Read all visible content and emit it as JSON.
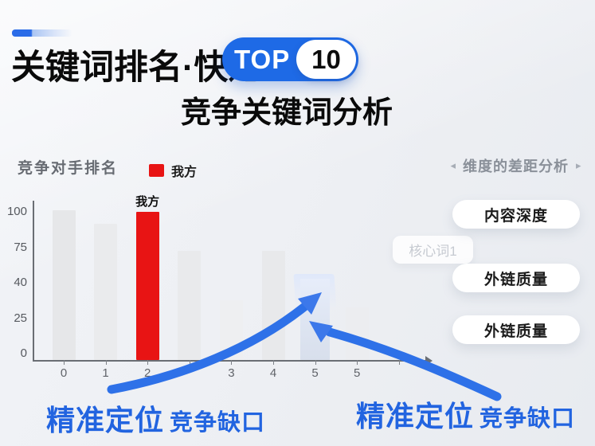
{
  "header": {
    "title_line1": "关键词排名·快速",
    "badge": {
      "label": "TOP",
      "number": "10",
      "bg_color": "#1e6ae6"
    },
    "title_line2": "竞争关键词分析"
  },
  "chart_section": {
    "title": "竞争对手排名",
    "legend": {
      "label": "我方",
      "color": "#e81414"
    }
  },
  "chart_data": {
    "type": "bar",
    "title": "竞争对手排名",
    "categories": [
      "0",
      "1",
      "2",
      "",
      "3",
      "4",
      "5",
      "5"
    ],
    "values": [
      100,
      91,
      99,
      73,
      40,
      73,
      54,
      35
    ],
    "ytick_labels": [
      "100",
      "75",
      "40",
      "25",
      "0"
    ],
    "ylim": [
      0,
      105
    ],
    "grid": false,
    "legend_entries": [
      "我方"
    ],
    "legend_position": "top",
    "highlight_index": 2,
    "highlight_label": "我方",
    "bars": [
      {
        "x": "0",
        "v": 100,
        "color": "#e6e7e9"
      },
      {
        "x": "1",
        "v": 91,
        "color": "#eaebed"
      },
      {
        "x": "2",
        "v": 99,
        "color": "#e81414",
        "label": "我方"
      },
      {
        "x": "",
        "v": 73,
        "color": "#e9eaec"
      },
      {
        "x": "3",
        "v": 40,
        "color": "#eeeff1"
      },
      {
        "x": "4",
        "v": 73,
        "color": "#e8e9eb"
      },
      {
        "x": "5",
        "v": 54,
        "color": "#dfe7f6",
        "accent": true,
        "w": 37
      },
      {
        "x": "5",
        "v": 35,
        "color": "#ebecee",
        "opacity": 0.5
      }
    ]
  },
  "right_panel": {
    "arrow_left": "◂",
    "header": "维度的差距分析",
    "arrow_right": "▸",
    "chip": "核心词1",
    "buttons": [
      "内容深度",
      "外链质量",
      "外链质量"
    ]
  },
  "annotations": {
    "left": {
      "strong": "精准定位",
      "rest": "竞争缺口"
    },
    "right": {
      "strong": "精准定位",
      "rest": "竞争缺口"
    }
  },
  "colors": {
    "accent_blue": "#2264e0",
    "arrow_blue": "#2e71e8",
    "highlight_red": "#e81414",
    "background": "#edeff3"
  }
}
